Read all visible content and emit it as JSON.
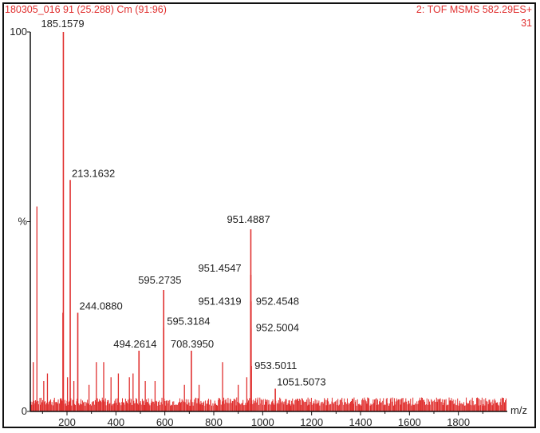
{
  "header": {
    "left": "180305_016 91 (25.288) Cm (91:96)",
    "right": "2: TOF MSMS 582.29ES+",
    "right2": "31"
  },
  "chart_data": {
    "type": "bar",
    "xlabel": "m/z",
    "ylabel": "%",
    "xlim": [
      50,
      2000
    ],
    "ylim": [
      0,
      100
    ],
    "xticks": [
      200,
      400,
      600,
      800,
      1000,
      1200,
      1400,
      1600,
      1800
    ],
    "xtick_labels": [
      "200",
      "400",
      "600",
      "800",
      "1000",
      "1200",
      "1400",
      "1600",
      "1800"
    ],
    "yticks": [
      0,
      50,
      100
    ],
    "ytick_labels": [
      "0",
      "%",
      "100"
    ],
    "color": "#e0302f",
    "labeled_peaks": [
      {
        "mz": 185.1579,
        "intensity": 100,
        "label": "185.1579"
      },
      {
        "mz": 213.1632,
        "intensity": 61,
        "label": "213.1632"
      },
      {
        "mz": 244.088,
        "intensity": 26,
        "label": "244.0880"
      },
      {
        "mz": 494.2614,
        "intensity": 16,
        "label": "494.2614"
      },
      {
        "mz": 595.2735,
        "intensity": 32,
        "label": "595.2735"
      },
      {
        "mz": 595.3184,
        "intensity": 22,
        "label": "595.3184"
      },
      {
        "mz": 708.395,
        "intensity": 16,
        "label": "708.3950"
      },
      {
        "mz": 951.4887,
        "intensity": 48,
        "label": "951.4887"
      },
      {
        "mz": 951.4547,
        "intensity": 36,
        "label": "951.4547"
      },
      {
        "mz": 951.4319,
        "intensity": 29,
        "label": "951.4319"
      },
      {
        "mz": 952.4548,
        "intensity": 29,
        "label": "952.4548"
      },
      {
        "mz": 952.5004,
        "intensity": 22,
        "label": "952.5004"
      },
      {
        "mz": 953.5011,
        "intensity": 12,
        "label": "953.5011"
      },
      {
        "mz": 1051.5073,
        "intensity": 6,
        "label": "1051.5073"
      }
    ],
    "other_peaks": [
      {
        "mz": 62,
        "intensity": 13
      },
      {
        "mz": 77,
        "intensity": 54
      },
      {
        "mz": 105,
        "intensity": 8
      },
      {
        "mz": 120,
        "intensity": 10
      },
      {
        "mz": 183,
        "intensity": 26
      },
      {
        "mz": 202,
        "intensity": 9
      },
      {
        "mz": 228,
        "intensity": 8
      },
      {
        "mz": 290,
        "intensity": 7
      },
      {
        "mz": 320,
        "intensity": 13
      },
      {
        "mz": 350,
        "intensity": 13
      },
      {
        "mz": 380,
        "intensity": 9
      },
      {
        "mz": 410,
        "intensity": 10
      },
      {
        "mz": 455,
        "intensity": 9
      },
      {
        "mz": 470,
        "intensity": 10
      },
      {
        "mz": 520,
        "intensity": 8
      },
      {
        "mz": 560,
        "intensity": 8
      },
      {
        "mz": 680,
        "intensity": 7
      },
      {
        "mz": 740,
        "intensity": 7
      },
      {
        "mz": 836,
        "intensity": 13
      },
      {
        "mz": 900,
        "intensity": 7
      },
      {
        "mz": 935,
        "intensity": 9
      }
    ]
  }
}
